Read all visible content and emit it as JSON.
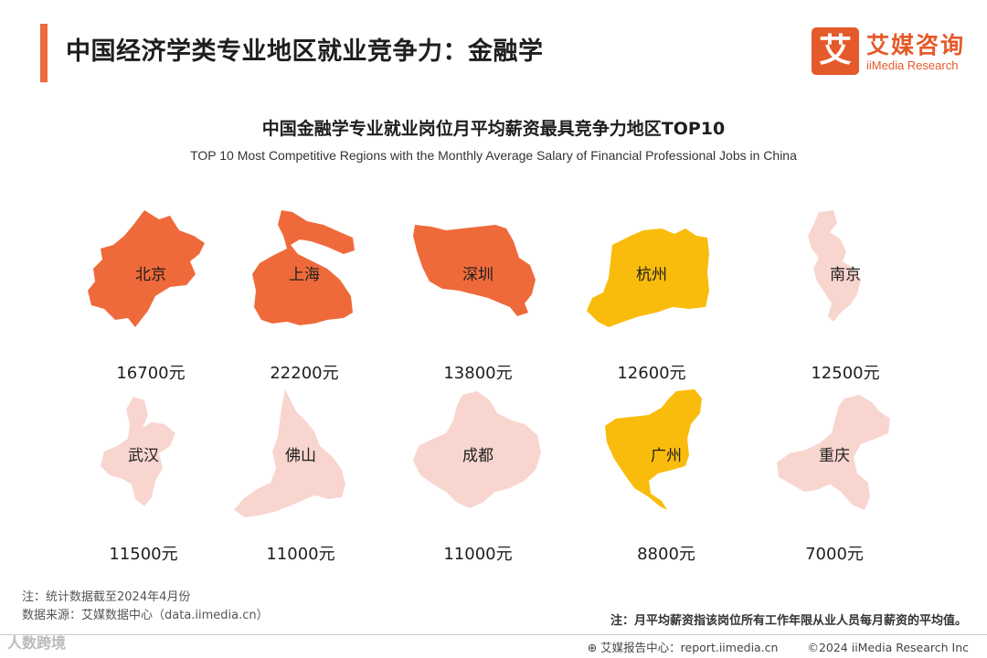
{
  "header": {
    "title": "中国经济学类专业地区就业竞争力：金融学"
  },
  "logo": {
    "mark": "艾",
    "name_cn": "艾媒咨询",
    "name_en": "iiMedia Research"
  },
  "chart": {
    "title": "中国金融学专业就业岗位月平均薪资最具竞争力地区TOP10",
    "subtitle": "TOP 10 Most Competitive Regions with the Monthly Average Salary  of Financial Professional Jobs in China"
  },
  "chart_data": {
    "type": "table",
    "unit": "元",
    "regions": [
      "北京",
      "上海",
      "深圳",
      "杭州",
      "南京",
      "武汉",
      "佛山",
      "成都",
      "广州",
      "重庆"
    ],
    "values": [
      16700,
      22200,
      13800,
      12600,
      12500,
      11500,
      11000,
      11000,
      8800,
      7000
    ],
    "salary_labels": [
      "16700元",
      "22200元",
      "13800元",
      "12600元",
      "12500元",
      "11500元",
      "11000元",
      "11000元",
      "8800元",
      "7000元"
    ],
    "colors": {
      "orange": "#ef6a3b",
      "yellow": "#f9bc0c",
      "pink": "#f8d6cf"
    },
    "region_colors": [
      "orange",
      "orange",
      "orange",
      "yellow",
      "pink",
      "pink",
      "pink",
      "pink",
      "yellow",
      "pink"
    ]
  },
  "notes": {
    "stat_date": "注：统计数据截至2024年4月份",
    "source": "数据来源：艾媒数据中心（data.iimedia.cn）",
    "definition": "注：月平均薪资指该岗位所有工作年限从业人员每月薪资的平均值。"
  },
  "footer": {
    "report_center": "⊕ 艾媒报告中心：report.iimedia.cn",
    "copyright": "©2024  iiMedia Research  Inc"
  },
  "watermark": "人数跨境"
}
